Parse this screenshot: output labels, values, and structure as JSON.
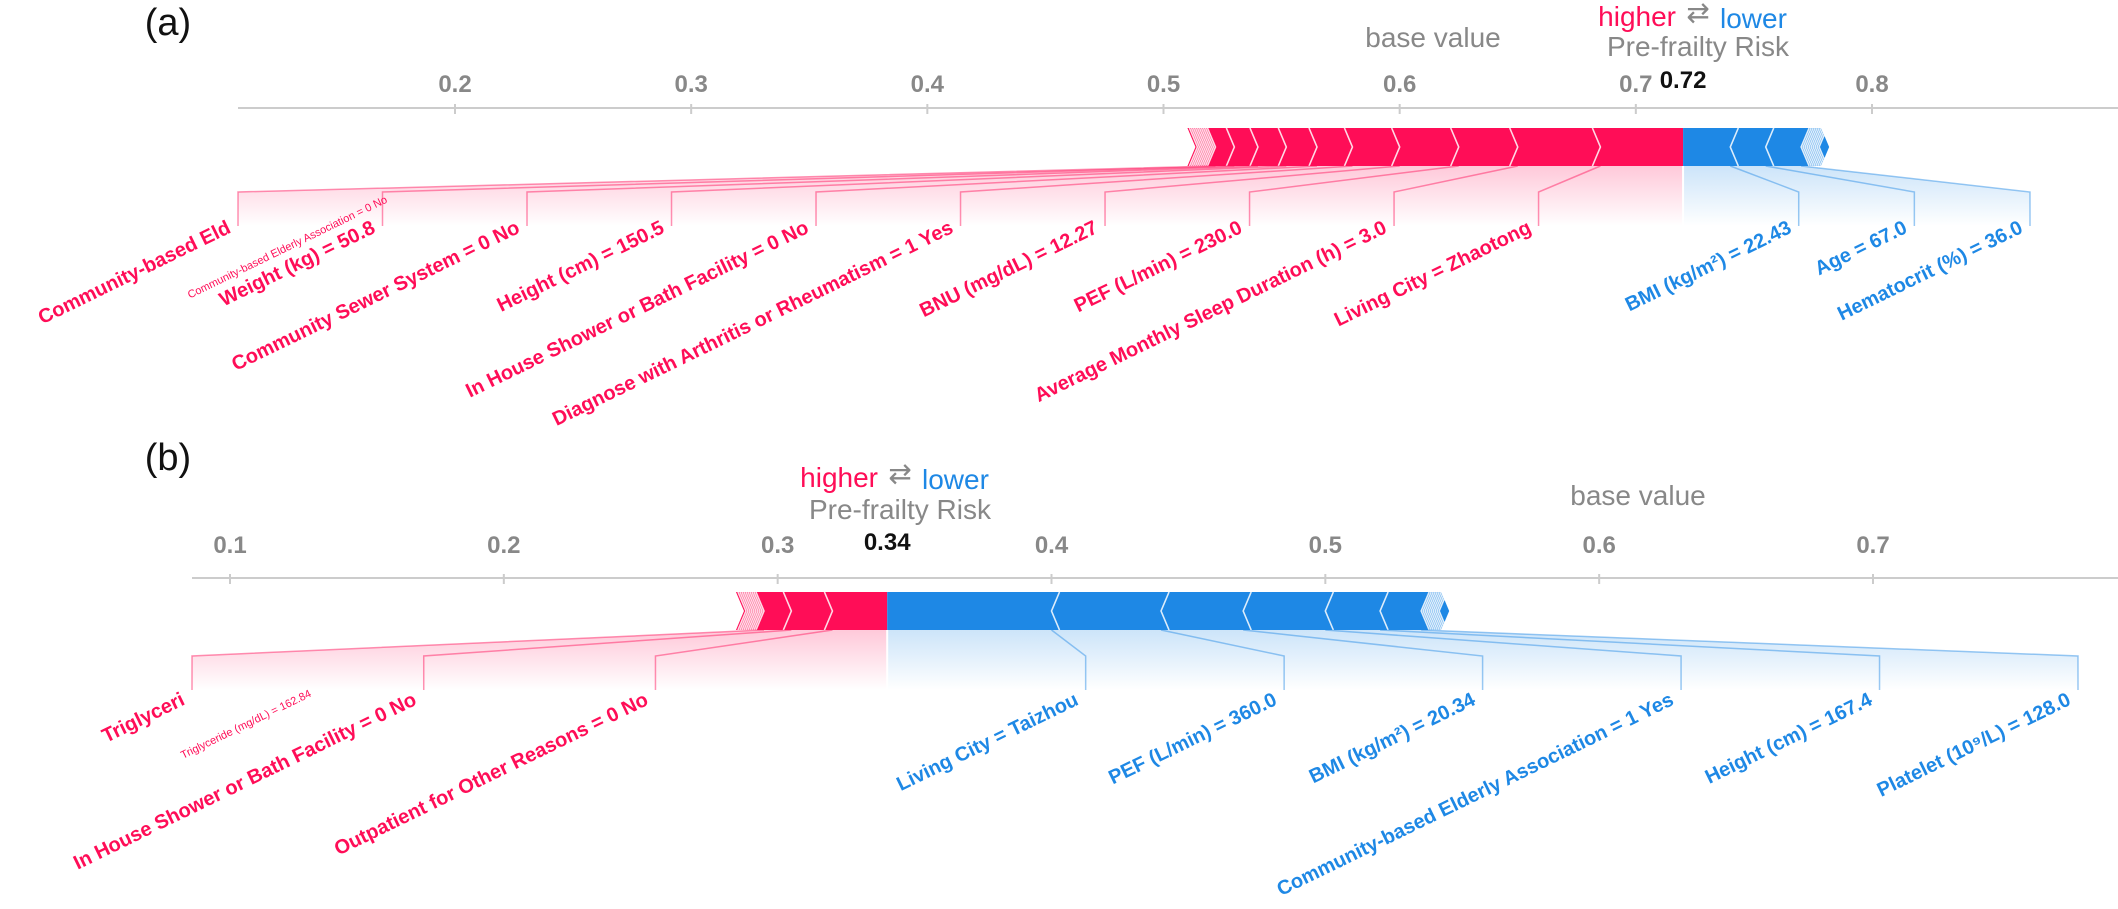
{
  "chart_data": [
    {
      "type": "force",
      "panel": "(a)",
      "legend": {
        "higher": "higher",
        "lower": "lower",
        "output_name": "Pre-frailty Risk",
        "arrows": "⇄"
      },
      "base_value_label": "base value",
      "output_value": 0.72,
      "output_label": "0.72",
      "xlim": [
        0.11,
        0.875
      ],
      "ticks": [
        0.2,
        0.3,
        0.4,
        0.5,
        0.6,
        0.7,
        0.8
      ],
      "tick_labels": [
        "0.2",
        "0.3",
        "0.4",
        "0.5",
        "0.6",
        "0.7",
        "0.8"
      ],
      "positive_features": [
        {
          "label": "Living City = Zhaotong",
          "start": 0.72,
          "end": 0.685
        },
        {
          "label": "Average Monthly Sleep Duration (h) = 3.0",
          "start": 0.685,
          "end": 0.65
        },
        {
          "label": "PEF (L/min) = 230.0",
          "start": 0.65,
          "end": 0.625
        },
        {
          "label": "BNU (mg/dL) = 12.27",
          "start": 0.625,
          "end": 0.6
        },
        {
          "label": "Diagnose with Arthritis or Rheumatism = 1 Yes",
          "start": 0.6,
          "end": 0.58
        },
        {
          "label": "In House Shower or Bath Facility = 0 No",
          "start": 0.58,
          "end": 0.565
        },
        {
          "label": "Height (cm) = 150.5",
          "start": 0.565,
          "end": 0.552
        },
        {
          "label": "Community Sewer System = 0 No",
          "start": 0.552,
          "end": 0.54
        },
        {
          "label": "Weight (kg) = 50.8",
          "start": 0.54,
          "end": 0.53
        },
        {
          "label": "Community-based Eld",
          "start": 0.53,
          "end": 0.522
        }
      ],
      "tiny_label": "Community-based Elderly Association = 0 No",
      "negative_features": [
        {
          "label": "BMI (kg/m²) = 22.43",
          "start": 0.72,
          "end": 0.74
        },
        {
          "label": "Age = 67.0",
          "start": 0.74,
          "end": 0.755
        },
        {
          "label": "Hematocrit (%) = 36.0",
          "start": 0.755,
          "end": 0.77
        }
      ]
    },
    {
      "type": "force",
      "panel": "(b)",
      "legend": {
        "higher": "higher",
        "lower": "lower",
        "output_name": "Pre-frailty Risk",
        "arrows": "⇄"
      },
      "base_value_label": "base value",
      "output_value": 0.34,
      "output_label": "0.34",
      "xlim": [
        0.085,
        0.79
      ],
      "ticks": [
        0.1,
        0.2,
        0.3,
        0.4,
        0.5,
        0.6,
        0.7
      ],
      "tick_labels": [
        "0.1",
        "0.2",
        "0.3",
        "0.4",
        "0.5",
        "0.6",
        "0.7"
      ],
      "positive_features": [
        {
          "label": "Outpatient for Other Reasons = 0 No",
          "start": 0.34,
          "end": 0.32
        },
        {
          "label": "In House Shower or Bath Facility = 0 No",
          "start": 0.32,
          "end": 0.305
        },
        {
          "label": "Triglyceri",
          "start": 0.305,
          "end": 0.295
        }
      ],
      "tiny_label": "Triglyceride (mg/dL) = 162.84",
      "negative_features": [
        {
          "label": "Living City = Taizhou",
          "start": 0.34,
          "end": 0.4
        },
        {
          "label": "PEF (L/min) = 360.0",
          "start": 0.4,
          "end": 0.44
        },
        {
          "label": "BMI (kg/m²) = 20.34",
          "start": 0.44,
          "end": 0.47
        },
        {
          "label": "Community-based Elderly Association = 1 Yes",
          "start": 0.47,
          "end": 0.5
        },
        {
          "label": "Height (cm) = 167.4",
          "start": 0.5,
          "end": 0.52
        },
        {
          "label": "Platelet (10⁹/L) = 128.0",
          "start": 0.52,
          "end": 0.535
        }
      ]
    }
  ],
  "colors": {
    "positive": "#ff0d57",
    "negative": "#1e88e5",
    "axis": "#cccccc",
    "tick_text": "#888888"
  }
}
